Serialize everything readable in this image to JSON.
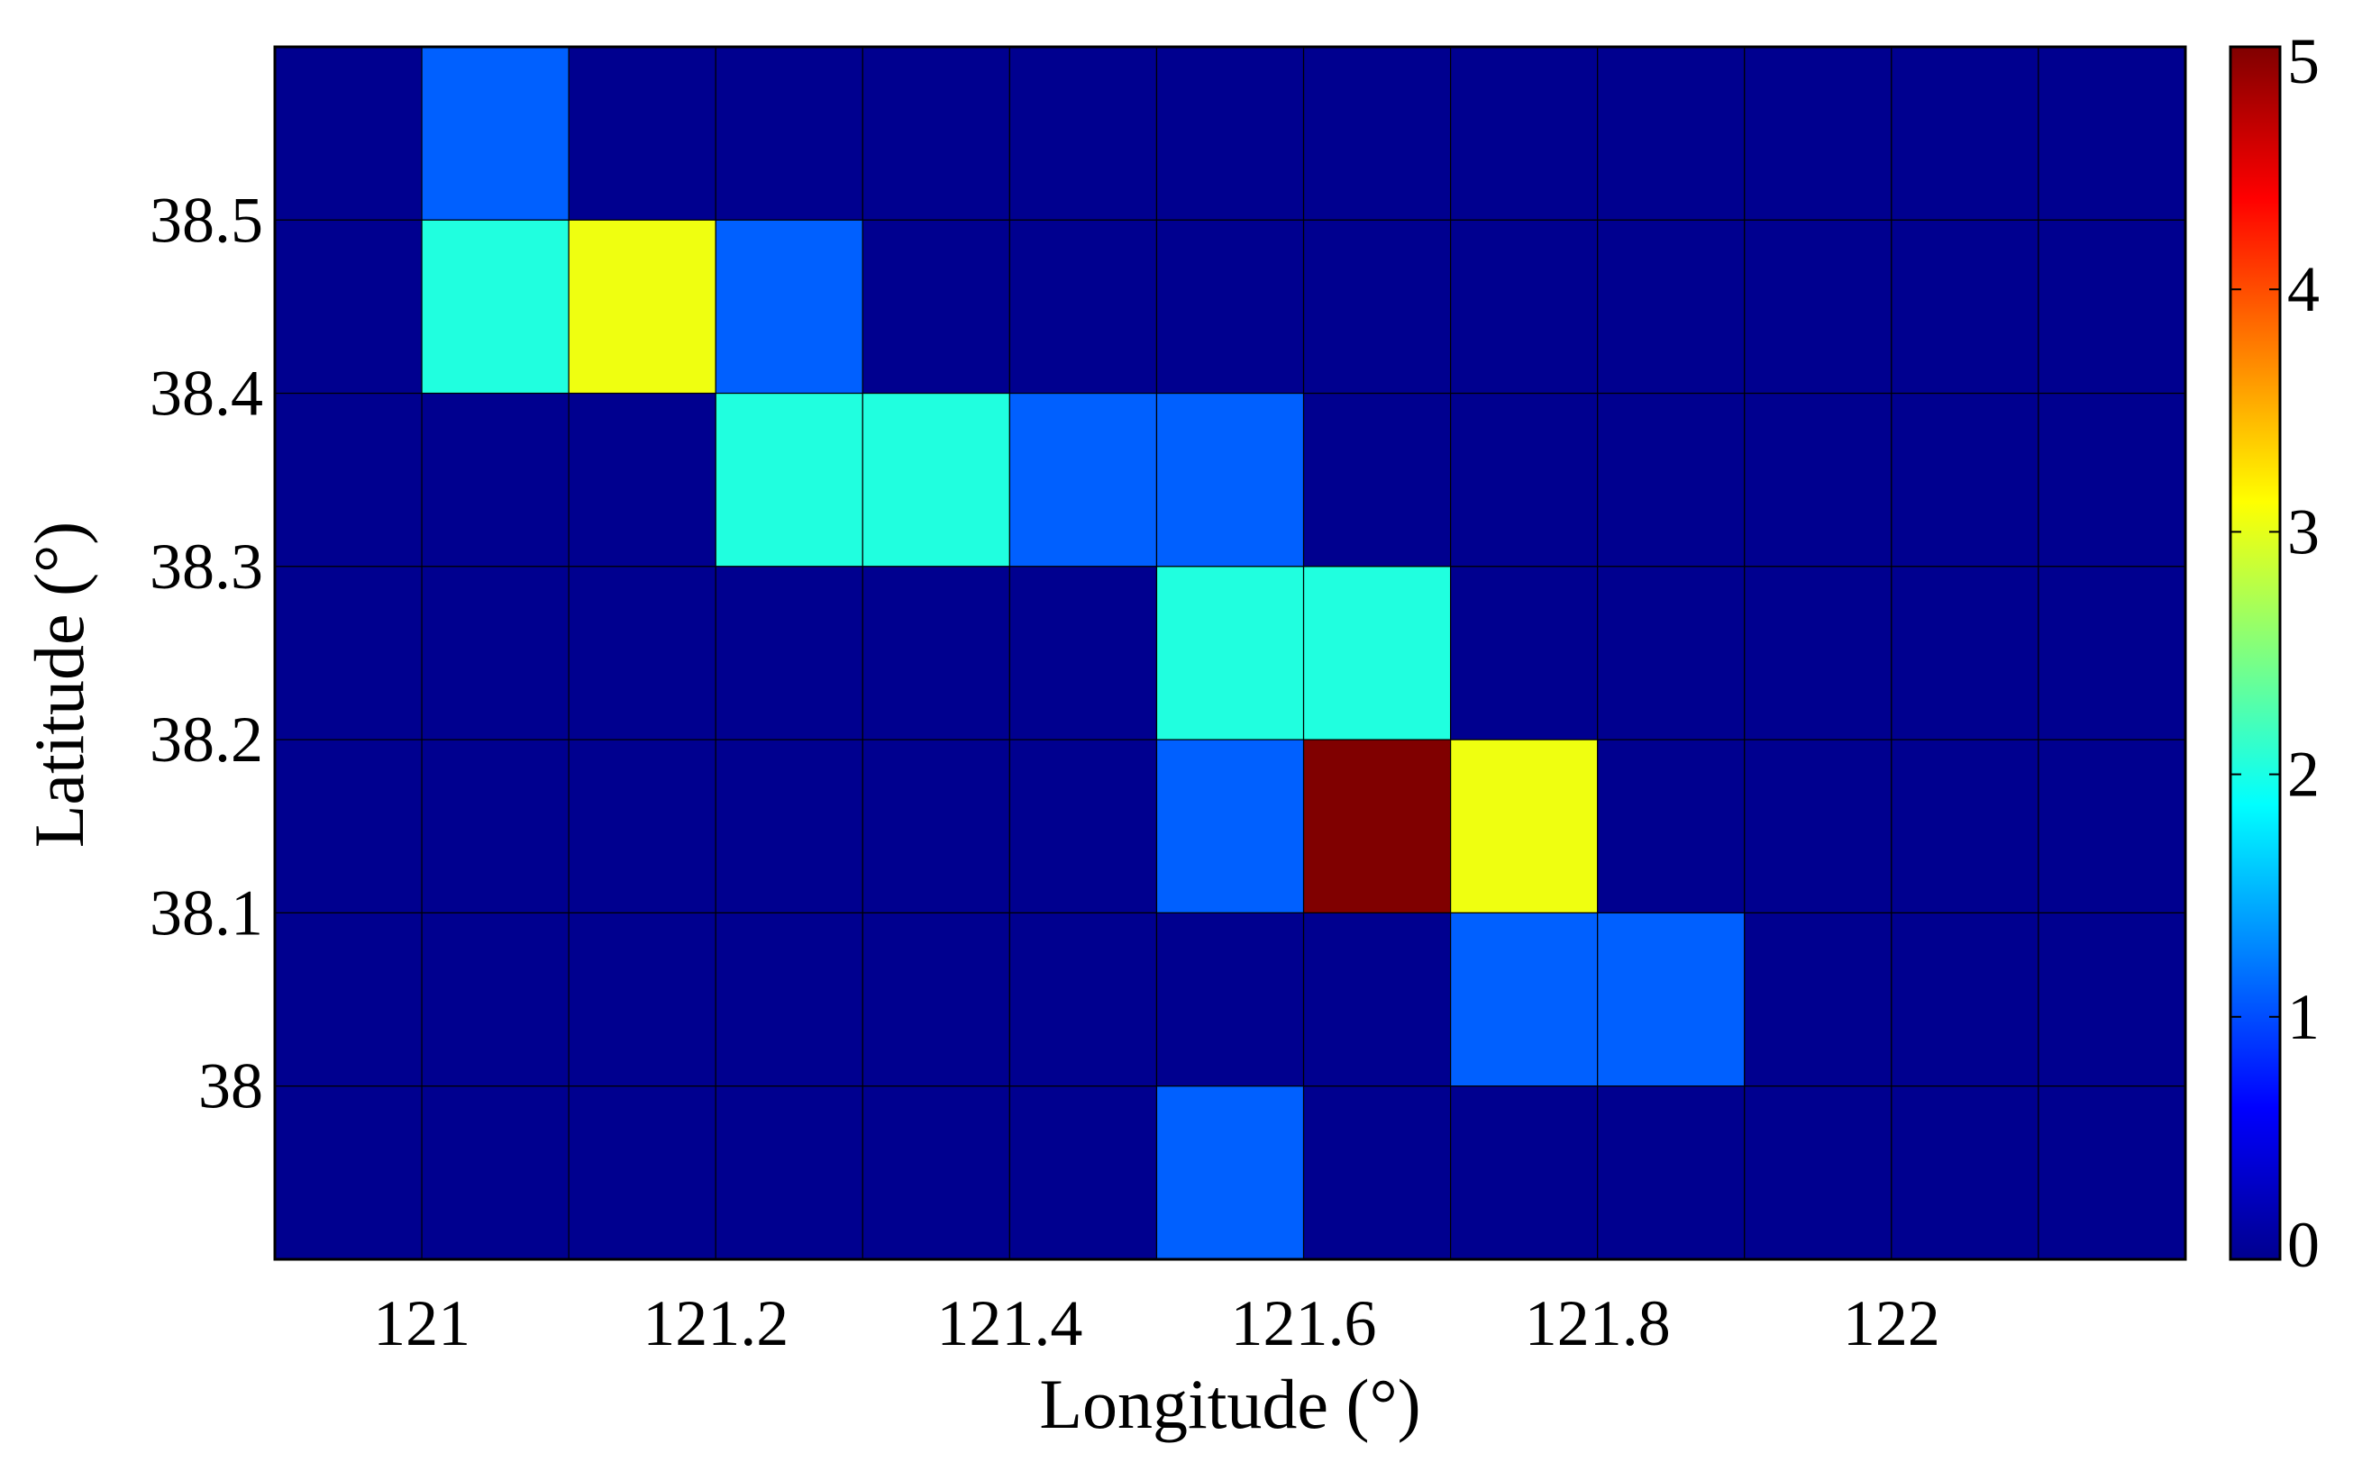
{
  "chart_data": {
    "type": "heatmap",
    "title": "",
    "xlabel": "Longitude (°)",
    "ylabel": "Latitude (°)",
    "x_edges": [
      120.9,
      121.0,
      121.1,
      121.2,
      121.3,
      121.4,
      121.5,
      121.6,
      121.7,
      121.8,
      121.9,
      122.0,
      122.1,
      122.2
    ],
    "y_edges": [
      38.6,
      38.5,
      38.4,
      38.3,
      38.2,
      38.1,
      38.0,
      37.9
    ],
    "xlim": [
      120.9,
      122.2
    ],
    "ylim": [
      37.9,
      38.6
    ],
    "xticks": [
      "121",
      "121.2",
      "121.4",
      "121.6",
      "121.8",
      "122"
    ],
    "xtick_values": [
      121.0,
      121.2,
      121.4,
      121.6,
      121.8,
      122.0
    ],
    "yticks": [
      "38.5",
      "38.4",
      "38.3",
      "38.2",
      "38.1",
      "38"
    ],
    "ytick_values": [
      38.5,
      38.4,
      38.3,
      38.2,
      38.1,
      38.0
    ],
    "values": [
      [
        0,
        1,
        0,
        0,
        0,
        0,
        0,
        0,
        0,
        0,
        0,
        0,
        0
      ],
      [
        0,
        2,
        3,
        1,
        0,
        0,
        0,
        0,
        0,
        0,
        0,
        0,
        0
      ],
      [
        0,
        0,
        0,
        2,
        2,
        1,
        1,
        0,
        0,
        0,
        0,
        0,
        0
      ],
      [
        0,
        0,
        0,
        0,
        0,
        0,
        2,
        2,
        0,
        0,
        0,
        0,
        0
      ],
      [
        0,
        0,
        0,
        0,
        0,
        0,
        1,
        5,
        3,
        0,
        0,
        0,
        0
      ],
      [
        0,
        0,
        0,
        0,
        0,
        0,
        0,
        0,
        1,
        1,
        0,
        0,
        0
      ],
      [
        0,
        0,
        0,
        0,
        0,
        0,
        1,
        0,
        0,
        0,
        0,
        0,
        0
      ]
    ],
    "colormap": "jet",
    "grid": true,
    "colorbar": {
      "range": [
        0,
        5
      ],
      "ticks": [
        "0",
        "1",
        "2",
        "3",
        "4",
        "5"
      ],
      "tick_values": [
        0,
        1,
        2,
        3,
        4,
        5
      ],
      "placement": "right"
    },
    "value_colors": {
      "0": "#00008F",
      "1": "#0060FF",
      "2": "#20FFDF",
      "3": "#EFFF10",
      "4": "#FF5000",
      "5": "#800000"
    }
  }
}
